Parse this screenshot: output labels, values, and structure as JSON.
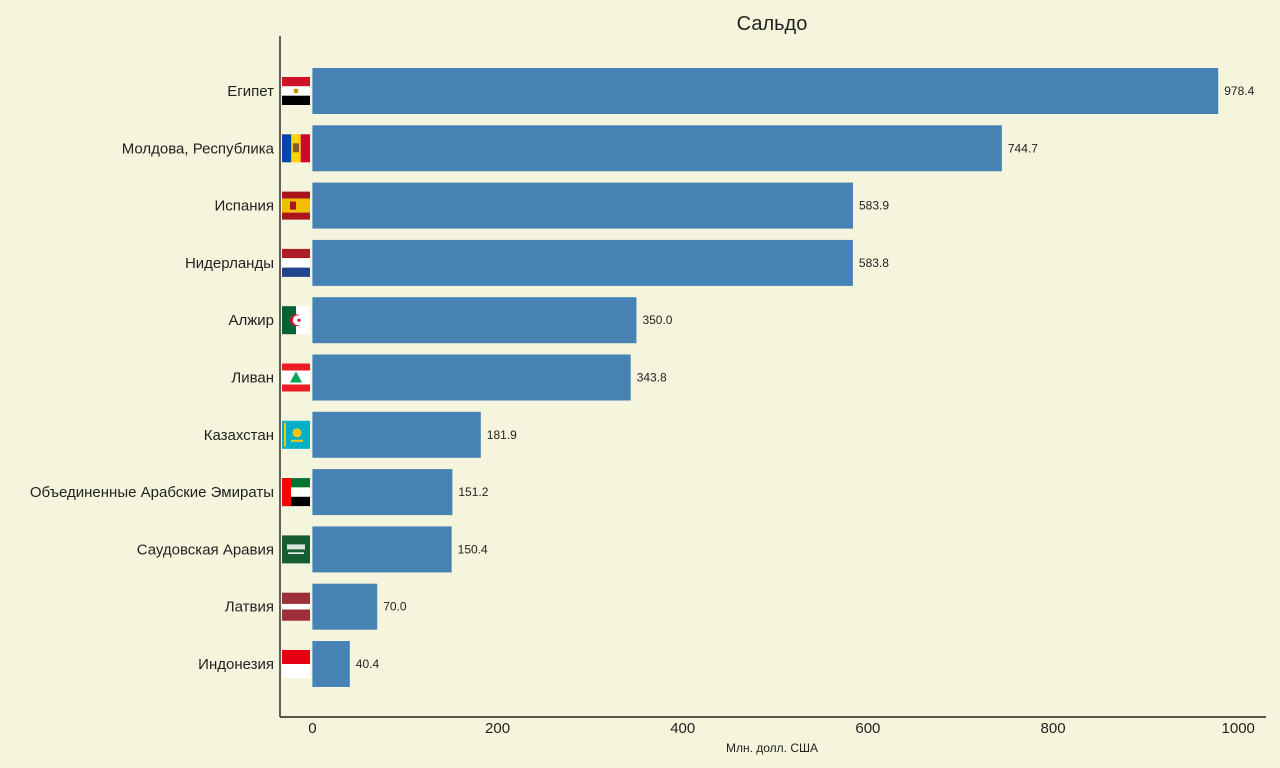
{
  "chart_data": {
    "type": "bar",
    "orientation": "horizontal",
    "title": "Сальдо",
    "xlabel": "Млн. долл. США",
    "ylabel": "",
    "xlim": [
      -35,
      1030
    ],
    "xticks": [
      0,
      200,
      400,
      600,
      800,
      1000
    ],
    "bar_color": "#4682b4",
    "background": "#f5f4dc",
    "grid": false,
    "categories": [
      "Египет",
      "Молдова, Республика",
      "Испания",
      "Нидерланды",
      "Алжир",
      "Ливан",
      "Казахстан",
      "Объединенные Арабские Эмираты",
      "Саудовская Аравия",
      "Латвия",
      "Индонезия"
    ],
    "values": [
      978.4,
      744.7,
      583.9,
      583.8,
      350.0,
      343.8,
      181.9,
      151.2,
      150.4,
      70.0,
      40.4
    ],
    "value_labels": [
      "978.4",
      "744.7",
      "583.9",
      "583.8",
      "350.0",
      "343.8",
      "181.9",
      "151.2",
      "150.4",
      "70.0",
      "40.4"
    ],
    "flags": [
      "egypt-flag-icon",
      "moldova-flag-icon",
      "spain-flag-icon",
      "netherlands-flag-icon",
      "algeria-flag-icon",
      "lebanon-flag-icon",
      "kazakhstan-flag-icon",
      "uae-flag-icon",
      "saudi-arabia-flag-icon",
      "latvia-flag-icon",
      "indonesia-flag-icon"
    ]
  }
}
